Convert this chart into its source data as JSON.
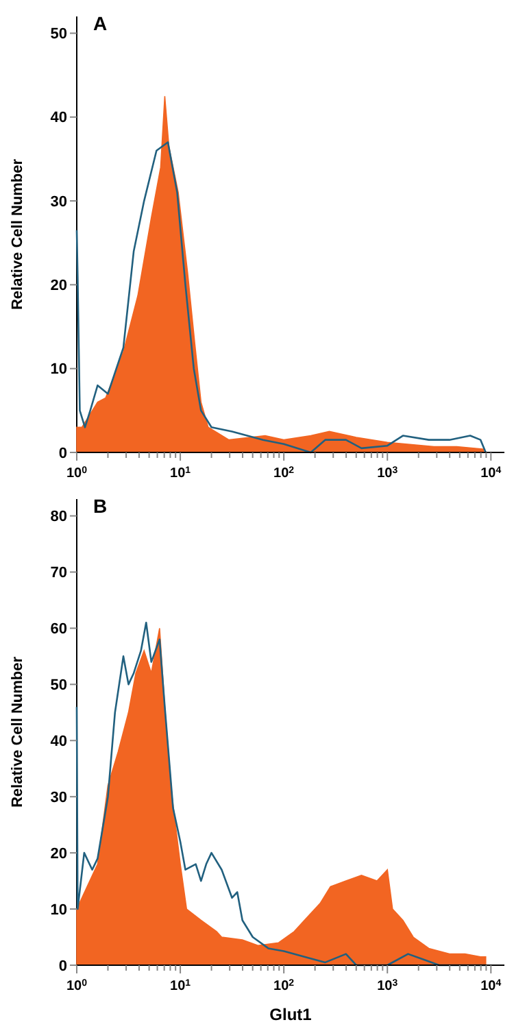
{
  "chart_data": [
    {
      "type": "area",
      "title": "A",
      "ylabel": "Relative Cell Number",
      "log": "x",
      "xlim": [
        1,
        13500
      ],
      "ylim": [
        0,
        52
      ],
      "yticks": [
        0,
        10,
        20,
        30,
        40,
        50
      ],
      "xticks": [
        {
          "value": 1,
          "label": "10$^{0}$"
        },
        {
          "value": 2,
          "label": null
        },
        {
          "value": 3,
          "label": null
        },
        {
          "value": 4,
          "label": null
        },
        {
          "value": 5,
          "label": null
        },
        {
          "value": 6,
          "label": null
        },
        {
          "value": 7,
          "label": null
        },
        {
          "value": 8,
          "label": null
        },
        {
          "value": 9,
          "label": null
        },
        {
          "value": 10,
          "label": "10$^{1}$"
        },
        {
          "value": 20,
          "label": null
        },
        {
          "value": 30,
          "label": null
        },
        {
          "value": 40,
          "label": null
        },
        {
          "value": 50,
          "label": null
        },
        {
          "value": 60,
          "label": null
        },
        {
          "value": 70,
          "label": null
        },
        {
          "value": 80,
          "label": null
        },
        {
          "value": 90,
          "label": null
        },
        {
          "value": 100,
          "label": "10$^{2}$"
        },
        {
          "value": 200,
          "label": null
        },
        {
          "value": 300,
          "label": null
        },
        {
          "value": 400,
          "label": null
        },
        {
          "value": 500,
          "label": null
        },
        {
          "value": 600,
          "label": null
        },
        {
          "value": 700,
          "label": null
        },
        {
          "value": 800,
          "label": null
        },
        {
          "value": 900,
          "label": null
        },
        {
          "value": 1000,
          "label": "10$^{3}$"
        },
        {
          "value": 2000,
          "label": null
        },
        {
          "value": 3000,
          "label": null
        },
        {
          "value": 4000,
          "label": null
        },
        {
          "value": 5000,
          "label": null
        },
        {
          "value": 6000,
          "label": null
        },
        {
          "value": 7000,
          "label": null
        },
        {
          "value": 8000,
          "label": null
        },
        {
          "value": 9000,
          "label": null
        },
        {
          "value": 10000,
          "label": "10$^{4}$"
        }
      ],
      "series": [
        {
          "color": "#f26522",
          "x": [
            1,
            1.12,
            1.26,
            1.59,
            1.9,
            2.82,
            3.89,
            5.25,
            6.46,
            7.08,
            7.76,
            9.55,
            11.75,
            13.8,
            15.85,
            18.6,
            29.5,
            66,
            100,
            182,
            275,
            500,
            1000,
            2820,
            4680,
            8510
          ],
          "values": [
            3,
            3,
            4,
            6,
            6.5,
            12,
            18.7,
            28,
            34,
            42.5,
            36.5,
            31,
            21.5,
            13,
            6,
            3,
            1.5,
            2,
            1.5,
            2,
            2.5,
            1.8,
            1.2,
            0.7,
            0.7,
            0.4
          ]
        },
        {
          "type": "line",
          "color": "#21607f",
          "x": [
            1,
            1.02,
            1.07,
            1.2,
            1.35,
            1.59,
            2,
            2.82,
            3.55,
            4.47,
            5.89,
            7.59,
            9.33,
            11.2,
            13.5,
            15.85,
            20,
            31.6,
            63,
            100,
            182,
            251,
            398,
            562,
            1000,
            1413,
            2512,
            3981,
            6310,
            7943,
            8910
          ],
          "values": [
            26.5,
            21,
            5,
            3,
            5,
            8,
            7,
            12.5,
            24,
            30,
            36,
            37,
            31,
            20,
            10,
            5,
            3,
            2.5,
            1.5,
            1,
            0,
            1.5,
            1.5,
            0.5,
            0.8,
            2,
            1.5,
            1.5,
            2,
            1.5,
            0
          ]
        }
      ]
    },
    {
      "type": "area",
      "title": "B",
      "xlabel": "Glut1",
      "ylabel": "Relative Cell Number",
      "log": "x",
      "xlim": [
        1,
        13500
      ],
      "ylim": [
        0,
        83
      ],
      "yticks": [
        0,
        10,
        20,
        30,
        40,
        50,
        60,
        70,
        80
      ],
      "xticks": [
        {
          "value": 1,
          "label": "10$^{0}$"
        },
        {
          "value": 2,
          "label": null
        },
        {
          "value": 3,
          "label": null
        },
        {
          "value": 4,
          "label": null
        },
        {
          "value": 5,
          "label": null
        },
        {
          "value": 6,
          "label": null
        },
        {
          "value": 7,
          "label": null
        },
        {
          "value": 8,
          "label": null
        },
        {
          "value": 9,
          "label": null
        },
        {
          "value": 10,
          "label": "10$^{1}$"
        },
        {
          "value": 20,
          "label": null
        },
        {
          "value": 30,
          "label": null
        },
        {
          "value": 40,
          "label": null
        },
        {
          "value": 50,
          "label": null
        },
        {
          "value": 60,
          "label": null
        },
        {
          "value": 70,
          "label": null
        },
        {
          "value": 80,
          "label": null
        },
        {
          "value": 90,
          "label": null
        },
        {
          "value": 100,
          "label": "10$^{2}$"
        },
        {
          "value": 200,
          "label": null
        },
        {
          "value": 300,
          "label": null
        },
        {
          "value": 400,
          "label": null
        },
        {
          "value": 500,
          "label": null
        },
        {
          "value": 600,
          "label": null
        },
        {
          "value": 700,
          "label": null
        },
        {
          "value": 800,
          "label": null
        },
        {
          "value": 900,
          "label": null
        },
        {
          "value": 1000,
          "label": "10$^{3}$"
        },
        {
          "value": 2000,
          "label": null
        },
        {
          "value": 3000,
          "label": null
        },
        {
          "value": 4000,
          "label": null
        },
        {
          "value": 5000,
          "label": null
        },
        {
          "value": 6000,
          "label": null
        },
        {
          "value": 7000,
          "label": null
        },
        {
          "value": 8000,
          "label": null
        },
        {
          "value": 9000,
          "label": null
        },
        {
          "value": 10000,
          "label": "10$^{4}$"
        }
      ],
      "series": [
        {
          "color": "#f26522",
          "x": [
            1,
            1.26,
            1.59,
            2,
            2.51,
            3.16,
            3.72,
            4.47,
            5.25,
            6.31,
            7.08,
            8.32,
            10,
            11.5,
            15.85,
            22.4,
            25.1,
            39.8,
            56.2,
            89,
            126,
            158,
            224,
            282,
            398,
            562,
            794,
            1000,
            1122,
            1413,
            1778,
            2512,
            3981,
            5623,
            7943,
            8910
          ],
          "values": [
            10,
            14,
            18,
            32,
            38,
            45,
            52,
            56,
            52,
            60,
            46,
            30,
            18,
            10,
            8,
            6,
            5,
            4.5,
            3.5,
            4,
            6,
            8,
            11,
            14,
            15,
            16,
            15,
            17,
            10,
            8,
            5,
            3,
            2,
            2,
            1.5,
            1.5
          ]
        },
        {
          "type": "line",
          "color": "#21607f",
          "x": [
            1,
            1.02,
            1.18,
            1.41,
            1.59,
            2,
            2.34,
            2.82,
            3.16,
            3.55,
            4.17,
            4.68,
            5.25,
            6.31,
            7.08,
            8.51,
            10,
            11.2,
            14.1,
            15.85,
            17.8,
            20,
            25.1,
            31.6,
            35.5,
            39.8,
            50.1,
            70.8,
            100,
            158,
            251,
            398,
            501,
            1000,
            1585,
            2239,
            3162,
            8910
          ],
          "values": [
            46,
            10,
            20,
            17,
            19,
            30,
            45,
            55,
            50,
            52,
            56,
            61,
            54,
            58,
            46,
            28,
            22,
            17,
            18,
            15,
            18,
            20,
            17,
            12,
            13,
            8,
            5,
            3,
            2.5,
            1.5,
            0.5,
            2,
            0,
            0,
            2,
            1,
            0,
            0
          ]
        }
      ]
    }
  ]
}
